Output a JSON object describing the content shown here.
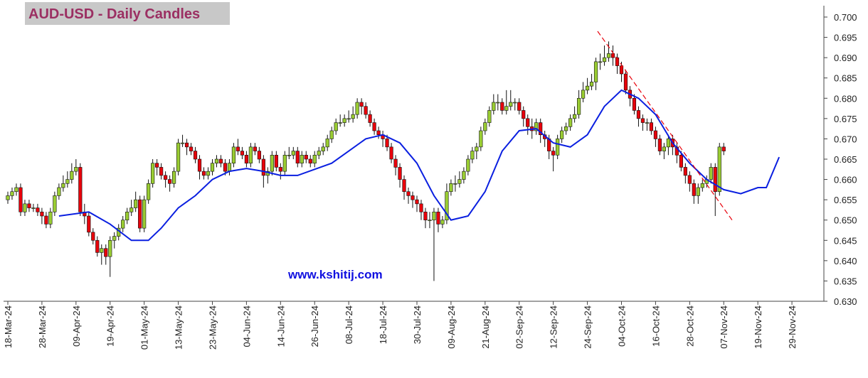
{
  "chart_data": {
    "type": "candlestick",
    "title": "AUD-USD - Daily Candles",
    "annotation": "www.kshitij.com",
    "up_color": "#9acd32",
    "down_color": "#e8000b",
    "xlim": [
      -1,
      191.5
    ],
    "ylim": [
      0.63,
      0.7
    ],
    "xticks": [
      {
        "value": 0,
        "label": "18-Mar-24"
      },
      {
        "value": 8,
        "label": "28-Mar-24"
      },
      {
        "value": 16,
        "label": "09-Apr-24"
      },
      {
        "value": 24,
        "label": "19-Apr-24"
      },
      {
        "value": 32,
        "label": "01-May-24"
      },
      {
        "value": 40,
        "label": "13-May-24"
      },
      {
        "value": 48,
        "label": "23-May-24"
      },
      {
        "value": 56,
        "label": "04-Jun-24"
      },
      {
        "value": 64,
        "label": "14-Jun-24"
      },
      {
        "value": 72,
        "label": "26-Jun-24"
      },
      {
        "value": 80,
        "label": "08-Jul-24"
      },
      {
        "value": 88,
        "label": "18-Jul-24"
      },
      {
        "value": 96,
        "label": "30-Jul-24"
      },
      {
        "value": 104,
        "label": "09-Aug-24"
      },
      {
        "value": 112,
        "label": "21-Aug-24"
      },
      {
        "value": 120,
        "label": "02-Sep-24"
      },
      {
        "value": 128,
        "label": "12-Sep-24"
      },
      {
        "value": 136,
        "label": "24-Sep-24"
      },
      {
        "value": 144,
        "label": "04-Oct-24"
      },
      {
        "value": 152,
        "label": "16-Oct-24"
      },
      {
        "value": 160,
        "label": "28-Oct-24"
      },
      {
        "value": 168,
        "label": "07-Nov-24"
      },
      {
        "value": 176,
        "label": "19-Nov-24"
      },
      {
        "value": 184,
        "label": "29-Nov-24"
      }
    ],
    "yticks": [
      {
        "value": 0.63,
        "label": "0.630"
      },
      0.635,
      {
        "value": 0.64,
        "label": "0.640"
      },
      0.645,
      {
        "value": 0.65,
        "label": "0.650"
      },
      0.655,
      {
        "value": 0.66,
        "label": "0.660"
      },
      0.665,
      {
        "value": 0.67,
        "label": "0.670"
      },
      0.675,
      {
        "value": 0.68,
        "label": "0.680"
      },
      0.685,
      {
        "value": 0.69,
        "label": "0.690"
      },
      0.695,
      {
        "value": 0.7,
        "label": "0.700"
      }
    ],
    "open": [
      0.655,
      0.656,
      0.657,
      0.658,
      0.652,
      0.654,
      0.653,
      0.653,
      0.652,
      0.651,
      0.649,
      0.652,
      0.656,
      0.658,
      0.659,
      0.66,
      0.662,
      0.663,
      0.652,
      0.651,
      0.647,
      0.645,
      0.642,
      0.643,
      0.641,
      0.645,
      0.646,
      0.648,
      0.65,
      0.652,
      0.653,
      0.655,
      0.648,
      0.655,
      0.659,
      0.664,
      0.663,
      0.661,
      0.66,
      0.659,
      0.662,
      0.669,
      0.669,
      0.668,
      0.667,
      0.665,
      0.662,
      0.661,
      0.662,
      0.664,
      0.665,
      0.664,
      0.662,
      0.664,
      0.668,
      0.667,
      0.666,
      0.664,
      0.668,
      0.667,
      0.665,
      0.661,
      0.662,
      0.666,
      0.663,
      0.662,
      0.666,
      0.666,
      0.667,
      0.664,
      0.666,
      0.665,
      0.664,
      0.666,
      0.667,
      0.668,
      0.67,
      0.672,
      0.674,
      0.674,
      0.675,
      0.675,
      0.676,
      0.679,
      0.678,
      0.676,
      0.674,
      0.672,
      0.671,
      0.67,
      0.668,
      0.665,
      0.663,
      0.66,
      0.657,
      0.656,
      0.655,
      0.654,
      0.652,
      0.65,
      0.65,
      0.652,
      0.649,
      0.65,
      0.657,
      0.659,
      0.659,
      0.66,
      0.662,
      0.665,
      0.667,
      0.668,
      0.672,
      0.674,
      0.677,
      0.679,
      0.679,
      0.677,
      0.678,
      0.679,
      0.679,
      0.677,
      0.675,
      0.673,
      0.672,
      0.674,
      0.671,
      0.67,
      0.667,
      0.666,
      0.67,
      0.672,
      0.673,
      0.675,
      0.676,
      0.68,
      0.682,
      0.683,
      0.684,
      0.689,
      0.689,
      0.69,
      0.691,
      0.69,
      0.688,
      0.686,
      0.682,
      0.68,
      0.677,
      0.675,
      0.674,
      0.674,
      0.672,
      0.67,
      0.667,
      0.668,
      0.67,
      0.668,
      0.666,
      0.663,
      0.661,
      0.659,
      0.656,
      0.658,
      0.659,
      0.66,
      0.663,
      0.657,
      0.668
    ],
    "high": [
      0.657,
      0.658,
      0.659,
      0.659,
      0.655,
      0.655,
      0.654,
      0.654,
      0.653,
      0.652,
      0.653,
      0.657,
      0.659,
      0.661,
      0.662,
      0.664,
      0.665,
      0.664,
      0.654,
      0.652,
      0.648,
      0.646,
      0.644,
      0.644,
      0.646,
      0.647,
      0.649,
      0.651,
      0.653,
      0.655,
      0.657,
      0.656,
      0.656,
      0.66,
      0.665,
      0.665,
      0.664,
      0.662,
      0.661,
      0.663,
      0.67,
      0.671,
      0.67,
      0.669,
      0.668,
      0.666,
      0.663,
      0.663,
      0.665,
      0.666,
      0.666,
      0.665,
      0.665,
      0.669,
      0.67,
      0.668,
      0.667,
      0.669,
      0.669,
      0.668,
      0.666,
      0.663,
      0.667,
      0.667,
      0.664,
      0.667,
      0.668,
      0.668,
      0.668,
      0.667,
      0.667,
      0.666,
      0.667,
      0.668,
      0.669,
      0.671,
      0.673,
      0.675,
      0.676,
      0.676,
      0.677,
      0.678,
      0.68,
      0.68,
      0.679,
      0.677,
      0.675,
      0.673,
      0.672,
      0.671,
      0.669,
      0.666,
      0.664,
      0.661,
      0.658,
      0.657,
      0.656,
      0.655,
      0.653,
      0.652,
      0.653,
      0.653,
      0.651,
      0.659,
      0.66,
      0.661,
      0.662,
      0.663,
      0.666,
      0.668,
      0.669,
      0.673,
      0.675,
      0.678,
      0.681,
      0.681,
      0.68,
      0.682,
      0.682,
      0.68,
      0.68,
      0.678,
      0.676,
      0.675,
      0.675,
      0.675,
      0.672,
      0.671,
      0.668,
      0.671,
      0.673,
      0.674,
      0.676,
      0.678,
      0.682,
      0.684,
      0.685,
      0.686,
      0.69,
      0.691,
      0.693,
      0.694,
      0.693,
      0.691,
      0.689,
      0.687,
      0.683,
      0.681,
      0.678,
      0.676,
      0.675,
      0.675,
      0.673,
      0.671,
      0.669,
      0.671,
      0.671,
      0.669,
      0.667,
      0.664,
      0.662,
      0.66,
      0.659,
      0.66,
      0.661,
      0.664,
      0.664,
      0.669,
      0.669
    ],
    "low": [
      0.654,
      0.655,
      0.656,
      0.651,
      0.651,
      0.652,
      0.652,
      0.651,
      0.649,
      0.648,
      0.648,
      0.651,
      0.655,
      0.657,
      0.658,
      0.659,
      0.661,
      0.651,
      0.649,
      0.646,
      0.644,
      0.641,
      0.639,
      0.639,
      0.636,
      0.643,
      0.645,
      0.647,
      0.649,
      0.651,
      0.652,
      0.647,
      0.647,
      0.654,
      0.658,
      0.661,
      0.66,
      0.658,
      0.657,
      0.658,
      0.661,
      0.668,
      0.666,
      0.666,
      0.664,
      0.66,
      0.66,
      0.66,
      0.661,
      0.663,
      0.663,
      0.661,
      0.661,
      0.663,
      0.666,
      0.665,
      0.663,
      0.663,
      0.666,
      0.664,
      0.658,
      0.659,
      0.661,
      0.662,
      0.66,
      0.661,
      0.665,
      0.665,
      0.663,
      0.663,
      0.664,
      0.663,
      0.663,
      0.665,
      0.666,
      0.667,
      0.669,
      0.671,
      0.673,
      0.673,
      0.674,
      0.674,
      0.675,
      0.676,
      0.675,
      0.673,
      0.671,
      0.67,
      0.668,
      0.667,
      0.664,
      0.661,
      0.658,
      0.655,
      0.654,
      0.653,
      0.652,
      0.65,
      0.648,
      0.648,
      0.635,
      0.647,
      0.648,
      0.649,
      0.656,
      0.657,
      0.658,
      0.659,
      0.661,
      0.664,
      0.665,
      0.667,
      0.671,
      0.673,
      0.676,
      0.677,
      0.676,
      0.676,
      0.677,
      0.677,
      0.676,
      0.673,
      0.671,
      0.67,
      0.671,
      0.669,
      0.668,
      0.665,
      0.662,
      0.665,
      0.669,
      0.671,
      0.672,
      0.674,
      0.675,
      0.679,
      0.681,
      0.682,
      0.682,
      0.687,
      0.688,
      0.689,
      0.688,
      0.686,
      0.684,
      0.681,
      0.678,
      0.676,
      0.673,
      0.672,
      0.672,
      0.671,
      0.668,
      0.666,
      0.665,
      0.666,
      0.666,
      0.664,
      0.662,
      0.659,
      0.657,
      0.654,
      0.654,
      0.657,
      0.658,
      0.659,
      0.651,
      0.656,
      0.666
    ],
    "close": [
      0.656,
      0.657,
      0.658,
      0.652,
      0.654,
      0.653,
      0.653,
      0.652,
      0.651,
      0.649,
      0.652,
      0.656,
      0.658,
      0.659,
      0.66,
      0.662,
      0.663,
      0.652,
      0.651,
      0.647,
      0.645,
      0.642,
      0.643,
      0.641,
      0.645,
      0.646,
      0.648,
      0.65,
      0.652,
      0.653,
      0.655,
      0.648,
      0.655,
      0.659,
      0.664,
      0.663,
      0.661,
      0.66,
      0.659,
      0.662,
      0.669,
      0.669,
      0.668,
      0.667,
      0.665,
      0.662,
      0.661,
      0.662,
      0.664,
      0.665,
      0.664,
      0.662,
      0.664,
      0.668,
      0.667,
      0.666,
      0.664,
      0.668,
      0.667,
      0.665,
      0.661,
      0.662,
      0.666,
      0.663,
      0.662,
      0.666,
      0.666,
      0.667,
      0.664,
      0.666,
      0.665,
      0.664,
      0.666,
      0.667,
      0.668,
      0.67,
      0.672,
      0.674,
      0.674,
      0.675,
      0.675,
      0.676,
      0.679,
      0.678,
      0.676,
      0.674,
      0.672,
      0.671,
      0.67,
      0.668,
      0.665,
      0.663,
      0.66,
      0.657,
      0.656,
      0.655,
      0.654,
      0.652,
      0.65,
      0.65,
      0.652,
      0.649,
      0.65,
      0.657,
      0.659,
      0.659,
      0.66,
      0.662,
      0.665,
      0.667,
      0.668,
      0.672,
      0.674,
      0.677,
      0.679,
      0.679,
      0.677,
      0.678,
      0.679,
      0.679,
      0.677,
      0.675,
      0.673,
      0.672,
      0.674,
      0.671,
      0.67,
      0.667,
      0.666,
      0.67,
      0.672,
      0.673,
      0.675,
      0.676,
      0.68,
      0.682,
      0.683,
      0.684,
      0.689,
      0.689,
      0.69,
      0.691,
      0.69,
      0.688,
      0.686,
      0.682,
      0.68,
      0.677,
      0.675,
      0.674,
      0.674,
      0.672,
      0.67,
      0.667,
      0.668,
      0.67,
      0.668,
      0.666,
      0.663,
      0.661,
      0.659,
      0.656,
      0.658,
      0.659,
      0.66,
      0.663,
      0.657,
      0.668,
      0.667
    ],
    "moving_average": {
      "color": "#0a1fe0",
      "x": [
        12,
        19,
        24,
        29,
        33,
        36,
        40,
        44,
        48,
        52,
        56,
        60,
        64,
        68,
        72,
        76,
        80,
        84,
        88,
        92,
        96,
        100,
        104,
        108,
        112,
        116,
        120,
        124,
        128,
        132,
        136,
        140,
        144,
        148,
        152,
        156,
        160,
        164,
        168,
        172,
        176,
        178,
        181
      ],
      "values": [
        0.651,
        0.652,
        0.649,
        0.645,
        0.645,
        0.648,
        0.653,
        0.656,
        0.66,
        0.662,
        0.6627,
        0.662,
        0.661,
        0.661,
        0.6625,
        0.664,
        0.667,
        0.67,
        0.671,
        0.669,
        0.664,
        0.656,
        0.65,
        0.651,
        0.657,
        0.667,
        0.672,
        0.6725,
        0.669,
        0.668,
        0.671,
        0.678,
        0.682,
        0.68,
        0.676,
        0.669,
        0.664,
        0.66,
        0.6575,
        0.6565,
        0.658,
        0.658,
        0.6655
      ]
    },
    "trendline": {
      "color": "#e8000b",
      "x": [
        138.4,
        170.3
      ],
      "values": [
        0.6965,
        0.6495
      ]
    }
  }
}
